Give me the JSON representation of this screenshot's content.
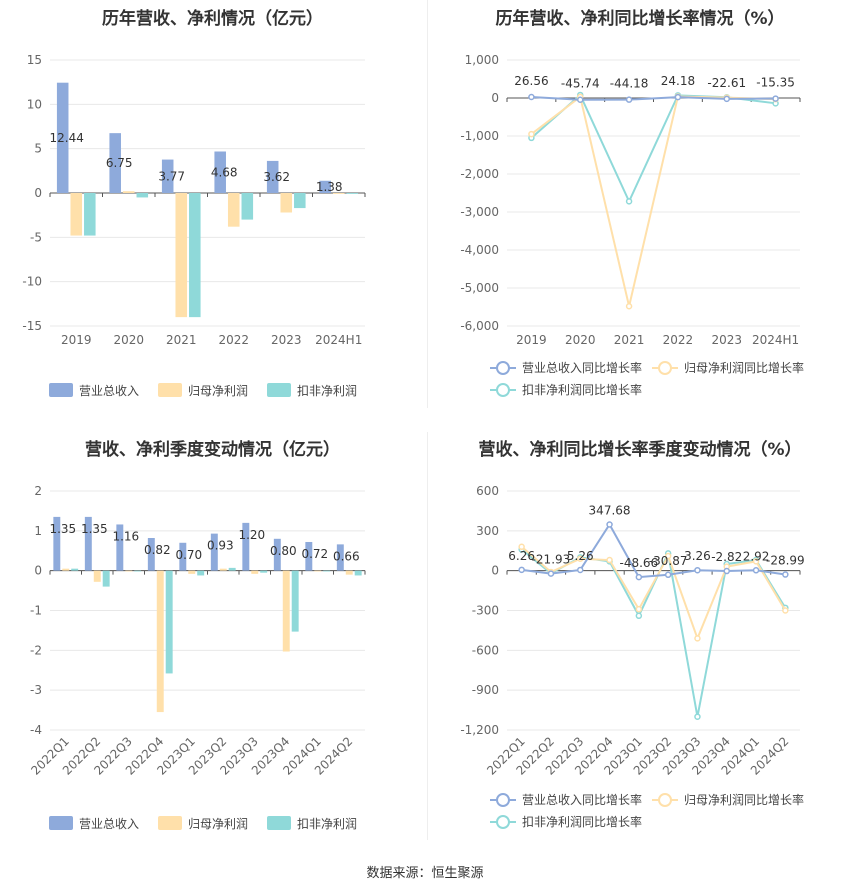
{
  "colors": {
    "revenue": "#8eaadb",
    "netprofit": "#ffe0aa",
    "deducted": "#8fd9d9",
    "grid": "#e8e8e8",
    "axis": "#999999"
  },
  "footer": "数据来源：恒生聚源",
  "chart_data": [
    {
      "id": "annual-bar",
      "type": "bar",
      "title": "历年营收、净利情况（亿元）",
      "categories": [
        "2019",
        "2020",
        "2021",
        "2022",
        "2023",
        "2024H1"
      ],
      "series": [
        {
          "name": "营业总收入",
          "values": [
            12.44,
            6.75,
            3.77,
            4.68,
            3.62,
            1.38
          ]
        },
        {
          "name": "归母净利润",
          "values": [
            -4.8,
            0.2,
            -14.0,
            -3.8,
            -2.2,
            -0.1
          ]
        },
        {
          "name": "扣非净利润",
          "values": [
            -4.8,
            -0.5,
            -14.0,
            -3.0,
            -1.7,
            -0.1
          ]
        }
      ],
      "data_labels": [
        "12.44",
        "6.75",
        "3.77",
        "4.68",
        "3.62",
        "1.38"
      ],
      "yticks": [
        15,
        10,
        5,
        0,
        -5,
        -10,
        -15
      ],
      "ylim": [
        -15,
        15
      ],
      "legend": "bottom",
      "grid": true
    },
    {
      "id": "annual-line",
      "type": "line",
      "title": "历年营收、净利同比增长率情况（%）",
      "categories": [
        "2019",
        "2020",
        "2021",
        "2022",
        "2023",
        "2024H1"
      ],
      "series": [
        {
          "name": "营业总收入同比增长率",
          "values": [
            26.56,
            -45.74,
            -44.18,
            24.18,
            -22.61,
            -15.35
          ]
        },
        {
          "name": "归母净利润同比增长率",
          "values": [
            -950,
            30,
            -5480,
            40,
            10,
            -30
          ]
        },
        {
          "name": "扣非净利润同比增长率",
          "values": [
            -1050,
            80,
            -2720,
            70,
            20,
            -140
          ]
        }
      ],
      "data_labels": [
        "26.56",
        "-45.74",
        "-44.18",
        "24.18",
        "-22.61",
        "-15.35"
      ],
      "ytick_labels": [
        "1,000",
        "0",
        "-1,000",
        "-2,000",
        "-3,000",
        "-4,000",
        "-5,000",
        "-6,000"
      ],
      "yticks": [
        1000,
        0,
        -1000,
        -2000,
        -3000,
        -4000,
        -5000,
        -6000
      ],
      "ylim": [
        -6000,
        1000
      ],
      "legend": "bottom",
      "grid": true
    },
    {
      "id": "quarter-bar",
      "type": "bar",
      "title": "营收、净利季度变动情况（亿元）",
      "categories": [
        "2022Q1",
        "2022Q2",
        "2022Q3",
        "2022Q4",
        "2023Q1",
        "2023Q2",
        "2023Q3",
        "2023Q4",
        "2024Q1",
        "2024Q2"
      ],
      "series": [
        {
          "name": "营业总收入",
          "values": [
            1.35,
            1.35,
            1.16,
            0.82,
            0.7,
            0.93,
            1.2,
            0.8,
            0.72,
            0.66
          ]
        },
        {
          "name": "归母净利润",
          "values": [
            0.05,
            -0.28,
            -0.02,
            -3.55,
            -0.08,
            0.05,
            -0.08,
            -2.03,
            -0.02,
            -0.1
          ]
        },
        {
          "name": "扣非净利润",
          "values": [
            0.05,
            -0.4,
            -0.02,
            -2.58,
            -0.12,
            0.07,
            -0.05,
            -1.53,
            -0.02,
            -0.12
          ]
        }
      ],
      "data_labels": [
        "1.35",
        "1.35",
        "1.16",
        "0.82",
        "0.70",
        "0.93",
        "1.20",
        "0.80",
        "0.72",
        "0.66"
      ],
      "yticks": [
        2,
        1,
        0,
        -1,
        -2,
        -3,
        -4
      ],
      "ylim": [
        -4,
        2
      ],
      "legend": "bottom",
      "grid": true
    },
    {
      "id": "quarter-line",
      "type": "line",
      "title": "营收、净利同比增长率季度变动情况（%）",
      "categories": [
        "2022Q1",
        "2022Q2",
        "2022Q3",
        "2022Q4",
        "2023Q1",
        "2023Q2",
        "2023Q3",
        "2023Q4",
        "2024Q1",
        "2024Q2"
      ],
      "series": [
        {
          "name": "营业总收入同比增长率",
          "values": [
            6.26,
            -21.93,
            5.26,
            347.68,
            -48.66,
            -30.87,
            3.26,
            -2.82,
            2.92,
            -28.99
          ]
        },
        {
          "name": "归母净利润同比增长率",
          "values": [
            180,
            -10,
            90,
            80,
            -290,
            110,
            -510,
            30,
            70,
            -300
          ]
        },
        {
          "name": "扣非净利润同比增长率",
          "values": [
            160,
            -20,
            100,
            70,
            -340,
            130,
            -1100,
            50,
            80,
            -280
          ]
        }
      ],
      "data_labels": [
        "6.26",
        "-21.93",
        "5.26",
        "347.68",
        "-48.66",
        "-30.87",
        "3.26",
        "-2.82",
        "2.92",
        "-28.99"
      ],
      "yticks": [
        600,
        300,
        0,
        -300,
        -600,
        -900,
        -1200
      ],
      "ytick_labels": [
        "600",
        "300",
        "0",
        "-300",
        "-600",
        "-900",
        "-1,200"
      ],
      "ylim": [
        -1200,
        600
      ],
      "legend": "bottom",
      "grid": true
    }
  ]
}
